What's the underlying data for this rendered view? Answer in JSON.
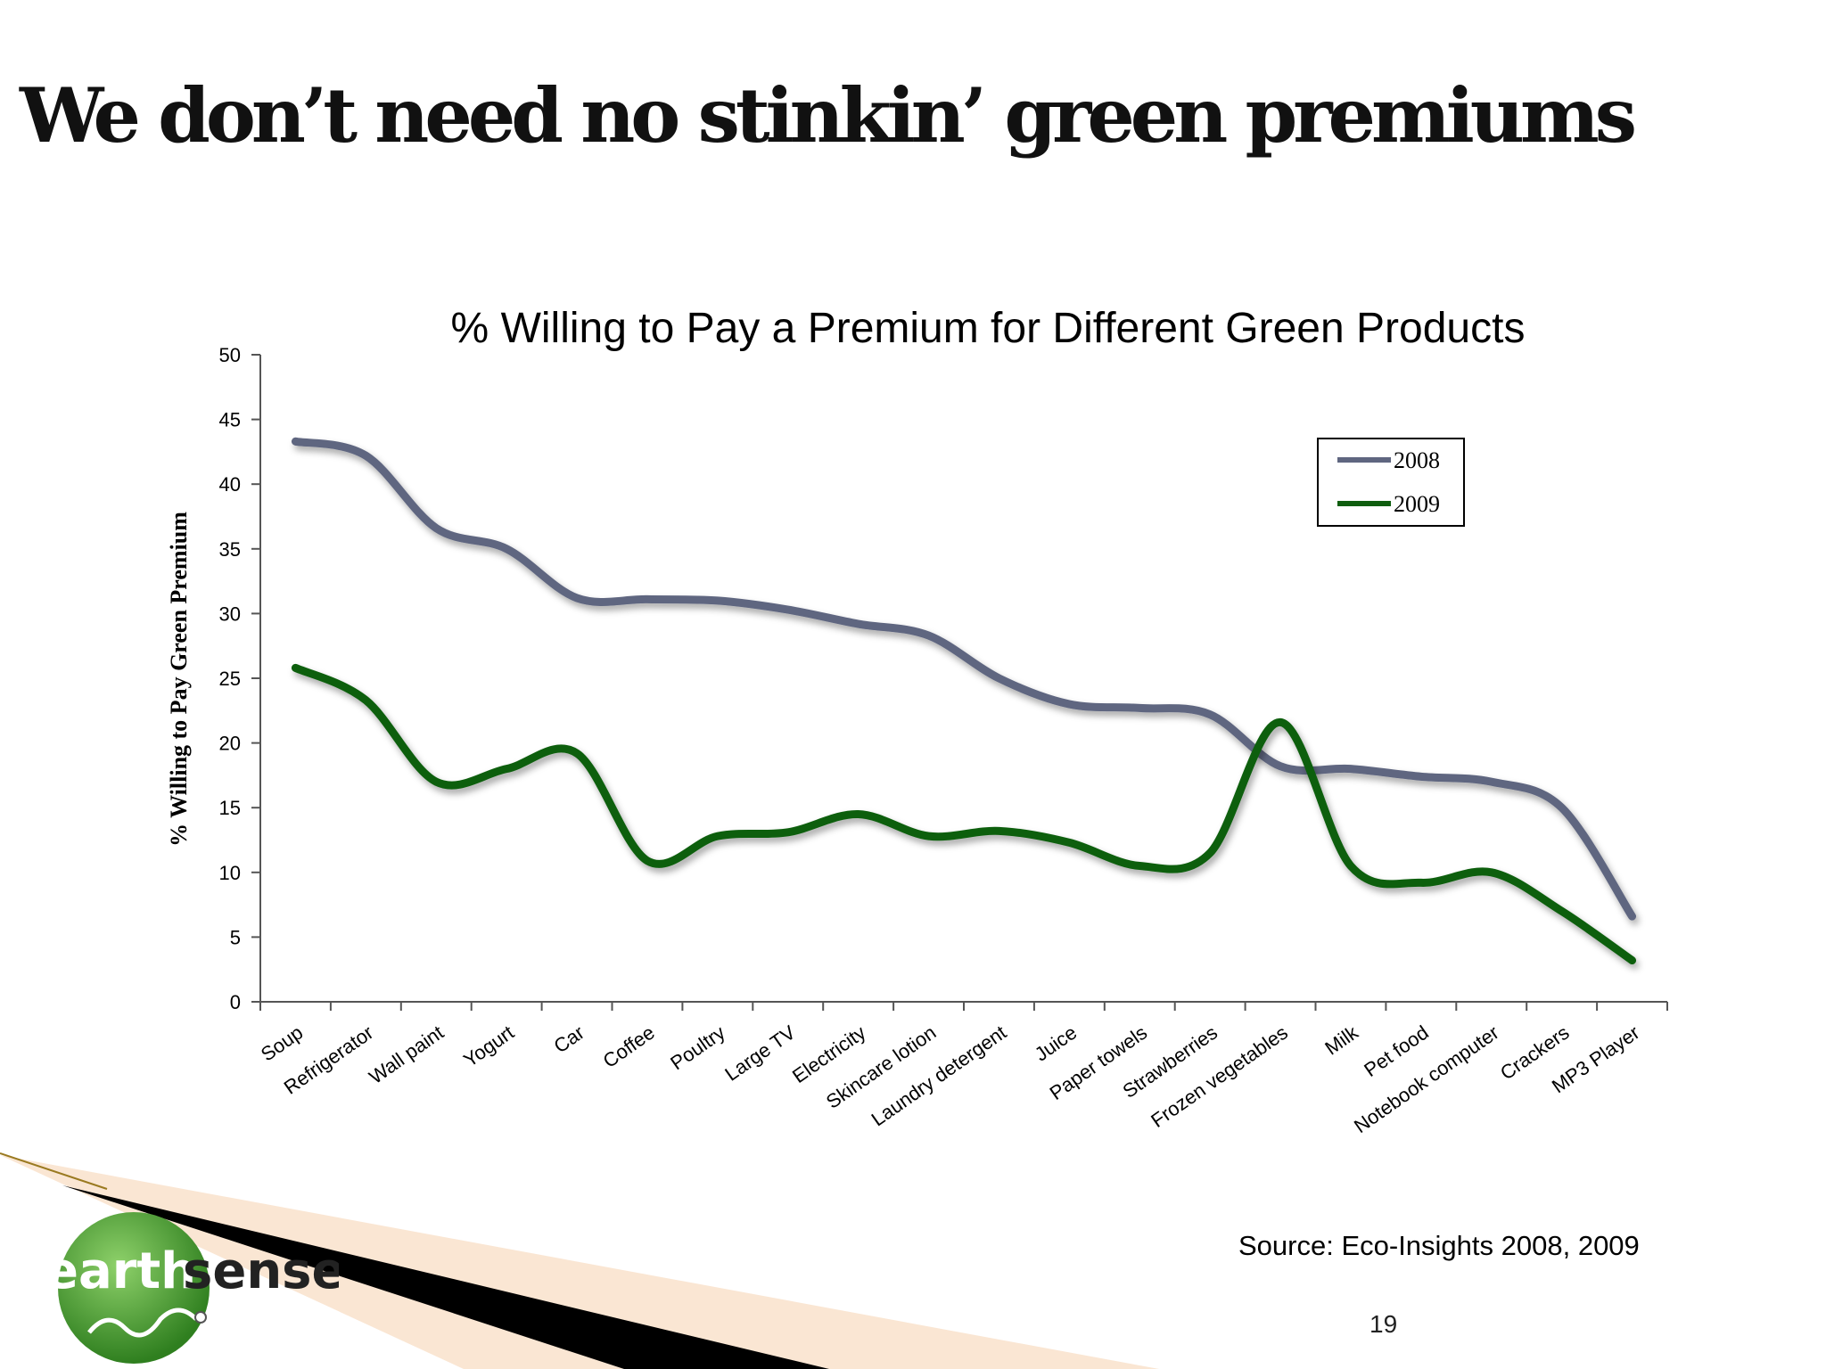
{
  "slide": {
    "title": "We don’t need no stinkin’ green premiums",
    "source": "Source:  Eco-Insights 2008, 2009",
    "page_number": "19"
  },
  "logo": {
    "part1": "earth",
    "part2": "sense"
  },
  "colors": {
    "series_2008": "#5f6680",
    "series_2009": "#0f5e0f",
    "logo_green": "#3f9a2a"
  },
  "chart_data": {
    "type": "line",
    "title": "% Willing to Pay a Premium for Different Green Products",
    "xlabel": "",
    "ylabel": "% Willing to Pay Green Premium",
    "ylim": [
      0,
      50
    ],
    "yticks": [
      0,
      5,
      10,
      15,
      20,
      25,
      30,
      35,
      40,
      45,
      50
    ],
    "legend_position": "top-right",
    "categories": [
      "Soup",
      "Refrigerator",
      "Wall paint",
      "Yogurt",
      "Car",
      "Coffee",
      "Poultry",
      "Large TV",
      "Electricity",
      "Skincare lotion",
      "Laundry detergent",
      "Juice",
      "Paper towels",
      "Strawberries",
      "Frozen vegetables",
      "Milk",
      "Pet food",
      "Notebook computer",
      "Crackers",
      "MP3 Player"
    ],
    "series": [
      {
        "name": "2008",
        "values": [
          43.3,
          42.2,
          36.6,
          35.0,
          31.2,
          31.1,
          31.0,
          30.3,
          29.2,
          28.3,
          25.0,
          23.0,
          22.7,
          22.2,
          18.2,
          18.0,
          17.4,
          17.0,
          15.0,
          6.6
        ]
      },
      {
        "name": "2009",
        "values": [
          25.8,
          23.3,
          17.0,
          18.0,
          19.2,
          10.9,
          12.8,
          13.1,
          14.5,
          12.8,
          13.2,
          12.3,
          10.5,
          11.5,
          21.6,
          10.5,
          9.2,
          10.0,
          7.0,
          3.2
        ]
      }
    ]
  }
}
